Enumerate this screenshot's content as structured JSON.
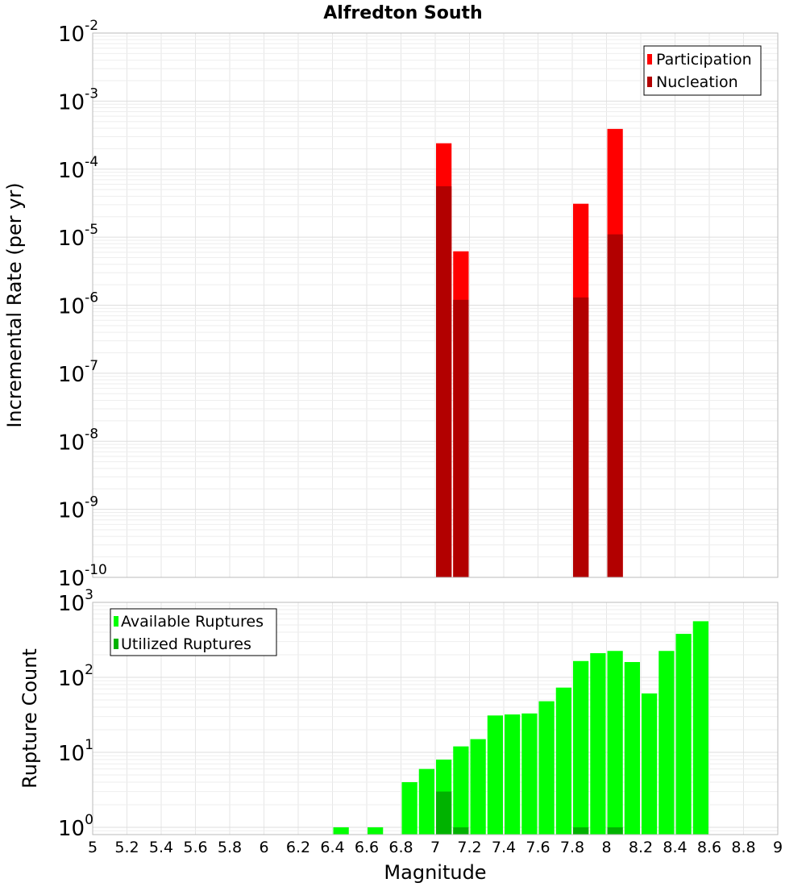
{
  "title": "Alfredton South",
  "colors": {
    "participation": "#ff0000",
    "nucleation": "#b20000",
    "available": "#00ff00",
    "utilized": "#00b200",
    "grid": "#e6e6e6",
    "frame": "#bbbbbb"
  },
  "chart_data": [
    {
      "type": "bar",
      "scale": "log",
      "ylabel": "Incremental Rate (per yr)",
      "ylim_exp": [
        -10,
        -2
      ],
      "y_tick_base": "10",
      "y_ticks_exp": [
        "-10",
        "-9",
        "-8",
        "-7",
        "-6",
        "-5",
        "-4",
        "-3",
        "-2"
      ],
      "legend": [
        "Participation",
        "Nucleation"
      ],
      "legend_position": "top-right",
      "series": [
        {
          "name": "Participation",
          "x": [
            7.05,
            7.15,
            7.85,
            8.05
          ],
          "values": [
            0.00024,
            6.2e-06,
            3.1e-05,
            0.00039
          ]
        },
        {
          "name": "Nucleation",
          "x": [
            7.05,
            7.15,
            7.85,
            8.05
          ],
          "values": [
            5.6e-05,
            1.2e-06,
            1.3e-06,
            1.1e-05
          ]
        }
      ]
    },
    {
      "type": "bar",
      "scale": "log",
      "ylabel": "Rupture Count",
      "ylim": [
        0.8,
        1000
      ],
      "y_tick_base": "10",
      "y_ticks_exp": [
        "0",
        "1",
        "2",
        "3"
      ],
      "legend": [
        "Available Ruptures",
        "Utilized Ruptures"
      ],
      "legend_position": "top-left",
      "series": [
        {
          "name": "Available Ruptures",
          "x": [
            6.45,
            6.65,
            6.85,
            6.95,
            7.05,
            7.15,
            7.25,
            7.35,
            7.45,
            7.55,
            7.65,
            7.75,
            7.85,
            7.95,
            8.05,
            8.15,
            8.25,
            8.35,
            8.45,
            8.55
          ],
          "values": [
            1,
            1,
            4,
            6,
            8,
            12,
            15,
            31,
            32,
            33,
            48,
            73,
            165,
            210,
            225,
            160,
            61,
            225,
            380,
            560
          ]
        },
        {
          "name": "Utilized Ruptures",
          "x": [
            7.05,
            7.15,
            7.85,
            8.05
          ],
          "values": [
            3,
            1,
            1,
            1
          ]
        }
      ]
    }
  ],
  "xlabel": "Magnitude",
  "x_range": [
    5,
    9
  ],
  "x_ticks": [
    "5",
    "5.2",
    "5.4",
    "5.6",
    "5.8",
    "6",
    "6.2",
    "6.4",
    "6.6",
    "6.8",
    "7",
    "7.2",
    "7.4",
    "7.6",
    "7.8",
    "8",
    "8.2",
    "8.4",
    "8.6",
    "8.8",
    "9"
  ]
}
